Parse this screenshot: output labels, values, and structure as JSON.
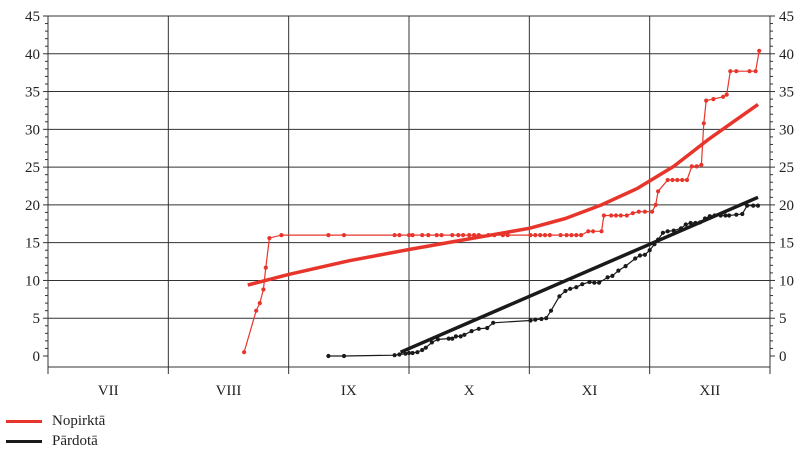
{
  "chart_data": {
    "type": "line",
    "title": "",
    "xlabel": "",
    "ylabel": "",
    "x_categories": [
      "VII",
      "VIII",
      "IX",
      "X",
      "XI",
      "XII"
    ],
    "ylim": [
      0,
      45
    ],
    "yticks": [
      0,
      5,
      10,
      15,
      20,
      25,
      30,
      35,
      40,
      45
    ],
    "grid": true,
    "legend_position": "bottom-left",
    "series": [
      {
        "name": "Nopirktā",
        "color": "#e8352b",
        "points": [
          [
            1.63,
            0.5
          ],
          [
            1.73,
            6.0
          ],
          [
            1.76,
            7.0
          ],
          [
            1.79,
            8.8
          ],
          [
            1.81,
            11.7
          ],
          [
            1.84,
            15.6
          ],
          [
            1.94,
            16.0
          ],
          [
            2.33,
            16.0
          ],
          [
            2.46,
            16.0
          ],
          [
            2.88,
            16.0
          ],
          [
            2.92,
            16.0
          ],
          [
            3.0,
            16.0
          ],
          [
            3.03,
            16.0
          ],
          [
            3.11,
            16.0
          ],
          [
            3.16,
            16.0
          ],
          [
            3.23,
            16.0
          ],
          [
            3.27,
            16.0
          ],
          [
            3.36,
            16.0
          ],
          [
            3.41,
            16.0
          ],
          [
            3.45,
            16.0
          ],
          [
            3.5,
            16.0
          ],
          [
            3.54,
            16.0
          ],
          [
            3.58,
            16.0
          ],
          [
            3.66,
            16.0
          ],
          [
            3.71,
            16.0
          ],
          [
            3.78,
            16.0
          ],
          [
            3.82,
            16.0
          ],
          [
            4.01,
            16.0
          ],
          [
            4.05,
            16.0
          ],
          [
            4.09,
            16.0
          ],
          [
            4.13,
            16.0
          ],
          [
            4.17,
            16.0
          ],
          [
            4.26,
            16.0
          ],
          [
            4.31,
            16.0
          ],
          [
            4.35,
            16.0
          ],
          [
            4.39,
            16.0
          ],
          [
            4.43,
            16.0
          ],
          [
            4.49,
            16.5
          ],
          [
            4.53,
            16.5
          ],
          [
            4.6,
            16.5
          ],
          [
            4.62,
            18.6
          ],
          [
            4.68,
            18.6
          ],
          [
            4.72,
            18.6
          ],
          [
            4.76,
            18.6
          ],
          [
            4.81,
            18.6
          ],
          [
            4.86,
            18.9
          ],
          [
            4.91,
            19.1
          ],
          [
            4.96,
            19.1
          ],
          [
            5.02,
            19.1
          ],
          [
            5.05,
            20.0
          ],
          [
            5.07,
            21.8
          ],
          [
            5.15,
            23.3
          ],
          [
            5.19,
            23.3
          ],
          [
            5.23,
            23.3
          ],
          [
            5.27,
            23.3
          ],
          [
            5.31,
            23.3
          ],
          [
            5.35,
            25.1
          ],
          [
            5.39,
            25.1
          ],
          [
            5.43,
            25.3
          ],
          [
            5.45,
            30.8
          ],
          [
            5.47,
            33.8
          ],
          [
            5.53,
            34.0
          ],
          [
            5.61,
            34.3
          ],
          [
            5.64,
            34.6
          ],
          [
            5.67,
            37.7
          ],
          [
            5.72,
            37.7
          ],
          [
            5.83,
            37.7
          ],
          [
            5.88,
            37.7
          ],
          [
            5.91,
            40.4
          ]
        ]
      },
      {
        "name": "Pārdotā",
        "color": "#1a1a1a",
        "points": [
          [
            2.33,
            0.0
          ],
          [
            2.46,
            0.0
          ],
          [
            2.88,
            0.1
          ],
          [
            2.92,
            0.2
          ],
          [
            2.97,
            0.3
          ],
          [
            3.0,
            0.4
          ],
          [
            3.03,
            0.4
          ],
          [
            3.07,
            0.5
          ],
          [
            3.11,
            0.8
          ],
          [
            3.14,
            1.1
          ],
          [
            3.19,
            1.8
          ],
          [
            3.24,
            2.2
          ],
          [
            3.33,
            2.3
          ],
          [
            3.36,
            2.3
          ],
          [
            3.39,
            2.6
          ],
          [
            3.43,
            2.6
          ],
          [
            3.46,
            2.8
          ],
          [
            3.52,
            3.3
          ],
          [
            3.58,
            3.6
          ],
          [
            3.65,
            3.7
          ],
          [
            3.7,
            4.4
          ],
          [
            4.01,
            4.7
          ],
          [
            4.05,
            4.8
          ],
          [
            4.1,
            4.9
          ],
          [
            4.14,
            5.0
          ],
          [
            4.18,
            6.0
          ],
          [
            4.25,
            7.9
          ],
          [
            4.3,
            8.6
          ],
          [
            4.34,
            8.9
          ],
          [
            4.39,
            9.1
          ],
          [
            4.44,
            9.5
          ],
          [
            4.5,
            9.8
          ],
          [
            4.54,
            9.7
          ],
          [
            4.58,
            9.7
          ],
          [
            4.65,
            10.4
          ],
          [
            4.69,
            10.6
          ],
          [
            4.74,
            11.3
          ],
          [
            4.8,
            11.9
          ],
          [
            4.88,
            12.9
          ],
          [
            4.92,
            13.3
          ],
          [
            4.96,
            13.4
          ],
          [
            5.0,
            14.0
          ],
          [
            5.04,
            14.8
          ],
          [
            5.07,
            15.4
          ],
          [
            5.11,
            16.3
          ],
          [
            5.15,
            16.5
          ],
          [
            5.2,
            16.6
          ],
          [
            5.26,
            16.9
          ],
          [
            5.3,
            17.4
          ],
          [
            5.34,
            17.6
          ],
          [
            5.38,
            17.6
          ],
          [
            5.42,
            17.7
          ],
          [
            5.46,
            18.2
          ],
          [
            5.5,
            18.5
          ],
          [
            5.54,
            18.6
          ],
          [
            5.59,
            18.6
          ],
          [
            5.63,
            18.6
          ],
          [
            5.66,
            18.6
          ],
          [
            5.72,
            18.7
          ],
          [
            5.77,
            18.8
          ],
          [
            5.81,
            19.9
          ],
          [
            5.86,
            19.9
          ],
          [
            5.9,
            19.9
          ]
        ]
      }
    ],
    "trendlines": [
      {
        "series": "Nopirktā",
        "color": "#e8352b",
        "points": [
          [
            1.66,
            9.4
          ],
          [
            2.0,
            10.8
          ],
          [
            2.5,
            12.6
          ],
          [
            3.0,
            14.1
          ],
          [
            3.5,
            15.5
          ],
          [
            4.0,
            16.9
          ],
          [
            4.3,
            18.2
          ],
          [
            4.6,
            20.0
          ],
          [
            4.9,
            22.2
          ],
          [
            5.2,
            25.1
          ],
          [
            5.5,
            28.8
          ],
          [
            5.9,
            33.3
          ]
        ]
      },
      {
        "series": "Pārdotā",
        "color": "#1a1a1a",
        "points": [
          [
            2.93,
            0.5
          ],
          [
            5.9,
            21.0
          ]
        ]
      }
    ]
  }
}
